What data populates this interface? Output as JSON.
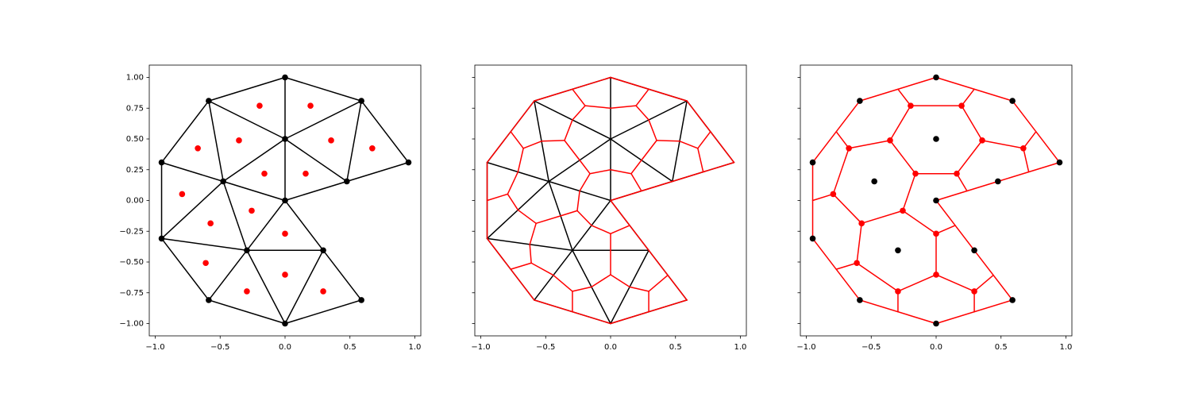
{
  "mesh": {
    "x": [
      0,
      0,
      0.476,
      -0.476,
      0.294,
      -0.294,
      0,
      0.588,
      -0.588,
      0.951,
      -0.951,
      -0.951,
      -0.588,
      0,
      0.588
    ],
    "y": [
      0,
      0.5,
      0.155,
      0.155,
      -0.405,
      -0.405,
      1,
      0.809,
      0.809,
      0.309,
      0.309,
      -0.309,
      -0.809,
      -1,
      -0.809
    ],
    "triangles": [
      [
        6,
        7,
        1
      ],
      [
        6,
        8,
        1
      ],
      [
        7,
        1,
        2
      ],
      [
        8,
        1,
        3
      ],
      [
        7,
        9,
        2
      ],
      [
        8,
        10,
        3
      ],
      [
        1,
        2,
        0
      ],
      [
        1,
        3,
        0
      ],
      [
        3,
        10,
        11
      ],
      [
        3,
        0,
        5
      ],
      [
        3,
        11,
        5
      ],
      [
        0,
        5,
        4
      ],
      [
        11,
        5,
        12
      ],
      [
        5,
        12,
        13
      ],
      [
        5,
        4,
        13
      ],
      [
        4,
        13,
        14
      ]
    ],
    "centroids": {
      "x": [
        0.196,
        -0.196,
        0.355,
        -0.355,
        0.672,
        -0.672,
        0.159,
        -0.159,
        -0.793,
        -0.257,
        -0.574,
        0,
        -0.611,
        -0.294,
        0,
        0.294
      ],
      "y": [
        0.77,
        0.77,
        0.488,
        0.488,
        0.424,
        0.424,
        0.218,
        0.218,
        0.052,
        -0.083,
        -0.186,
        -0.27,
        -0.508,
        -0.738,
        -0.603,
        -0.738
      ]
    },
    "vertex_color": "#000000",
    "dual_color": "#ff0000"
  },
  "chart_data": [
    {
      "type": "triangulation",
      "xlim": [
        -1.046,
        1.046
      ],
      "ylim": [
        -1.1,
        1.1
      ],
      "xticks": [
        {
          "value": -1,
          "label": "−1.0"
        },
        {
          "value": -0.5,
          "label": "−0.5"
        },
        {
          "value": 0,
          "label": "0.0"
        },
        {
          "value": 0.5,
          "label": "0.5"
        },
        {
          "value": 1,
          "label": "1.0"
        }
      ],
      "yticks": [
        {
          "value": -1,
          "label": "−1.00"
        },
        {
          "value": -0.75,
          "label": "−0.75"
        },
        {
          "value": -0.5,
          "label": "−0.50"
        },
        {
          "value": -0.25,
          "label": "−0.25"
        },
        {
          "value": 0,
          "label": "0.00"
        },
        {
          "value": 0.25,
          "label": "0.25"
        },
        {
          "value": 0.5,
          "label": "0.50"
        },
        {
          "value": 0.75,
          "label": "0.75"
        },
        {
          "value": 1,
          "label": "1.00"
        }
      ]
    },
    {
      "type": "dual-mesh",
      "xlim": [
        -1.046,
        1.046
      ],
      "ylim": [
        -1.1,
        1.1
      ],
      "xticks": [
        {
          "value": -1,
          "label": "−1.0"
        },
        {
          "value": -0.5,
          "label": "−0.5"
        },
        {
          "value": 0,
          "label": "0.0"
        },
        {
          "value": 0.5,
          "label": "0.5"
        },
        {
          "value": 1,
          "label": "1.0"
        }
      ],
      "yticks": [
        -1,
        -0.75,
        -0.5,
        -0.25,
        0,
        0.25,
        0.5,
        0.75,
        1
      ]
    },
    {
      "type": "voronoi",
      "xlim": [
        -1.046,
        1.046
      ],
      "ylim": [
        -1.1,
        1.1
      ],
      "xticks": [
        {
          "value": -1,
          "label": "−1.0"
        },
        {
          "value": -0.5,
          "label": "−0.5"
        },
        {
          "value": 0,
          "label": "0.0"
        },
        {
          "value": 0.5,
          "label": "0.5"
        },
        {
          "value": 1,
          "label": "1.0"
        }
      ],
      "yticks": [
        -1,
        -0.75,
        -0.5,
        -0.25,
        0,
        0.25,
        0.5,
        0.75,
        1
      ]
    }
  ]
}
